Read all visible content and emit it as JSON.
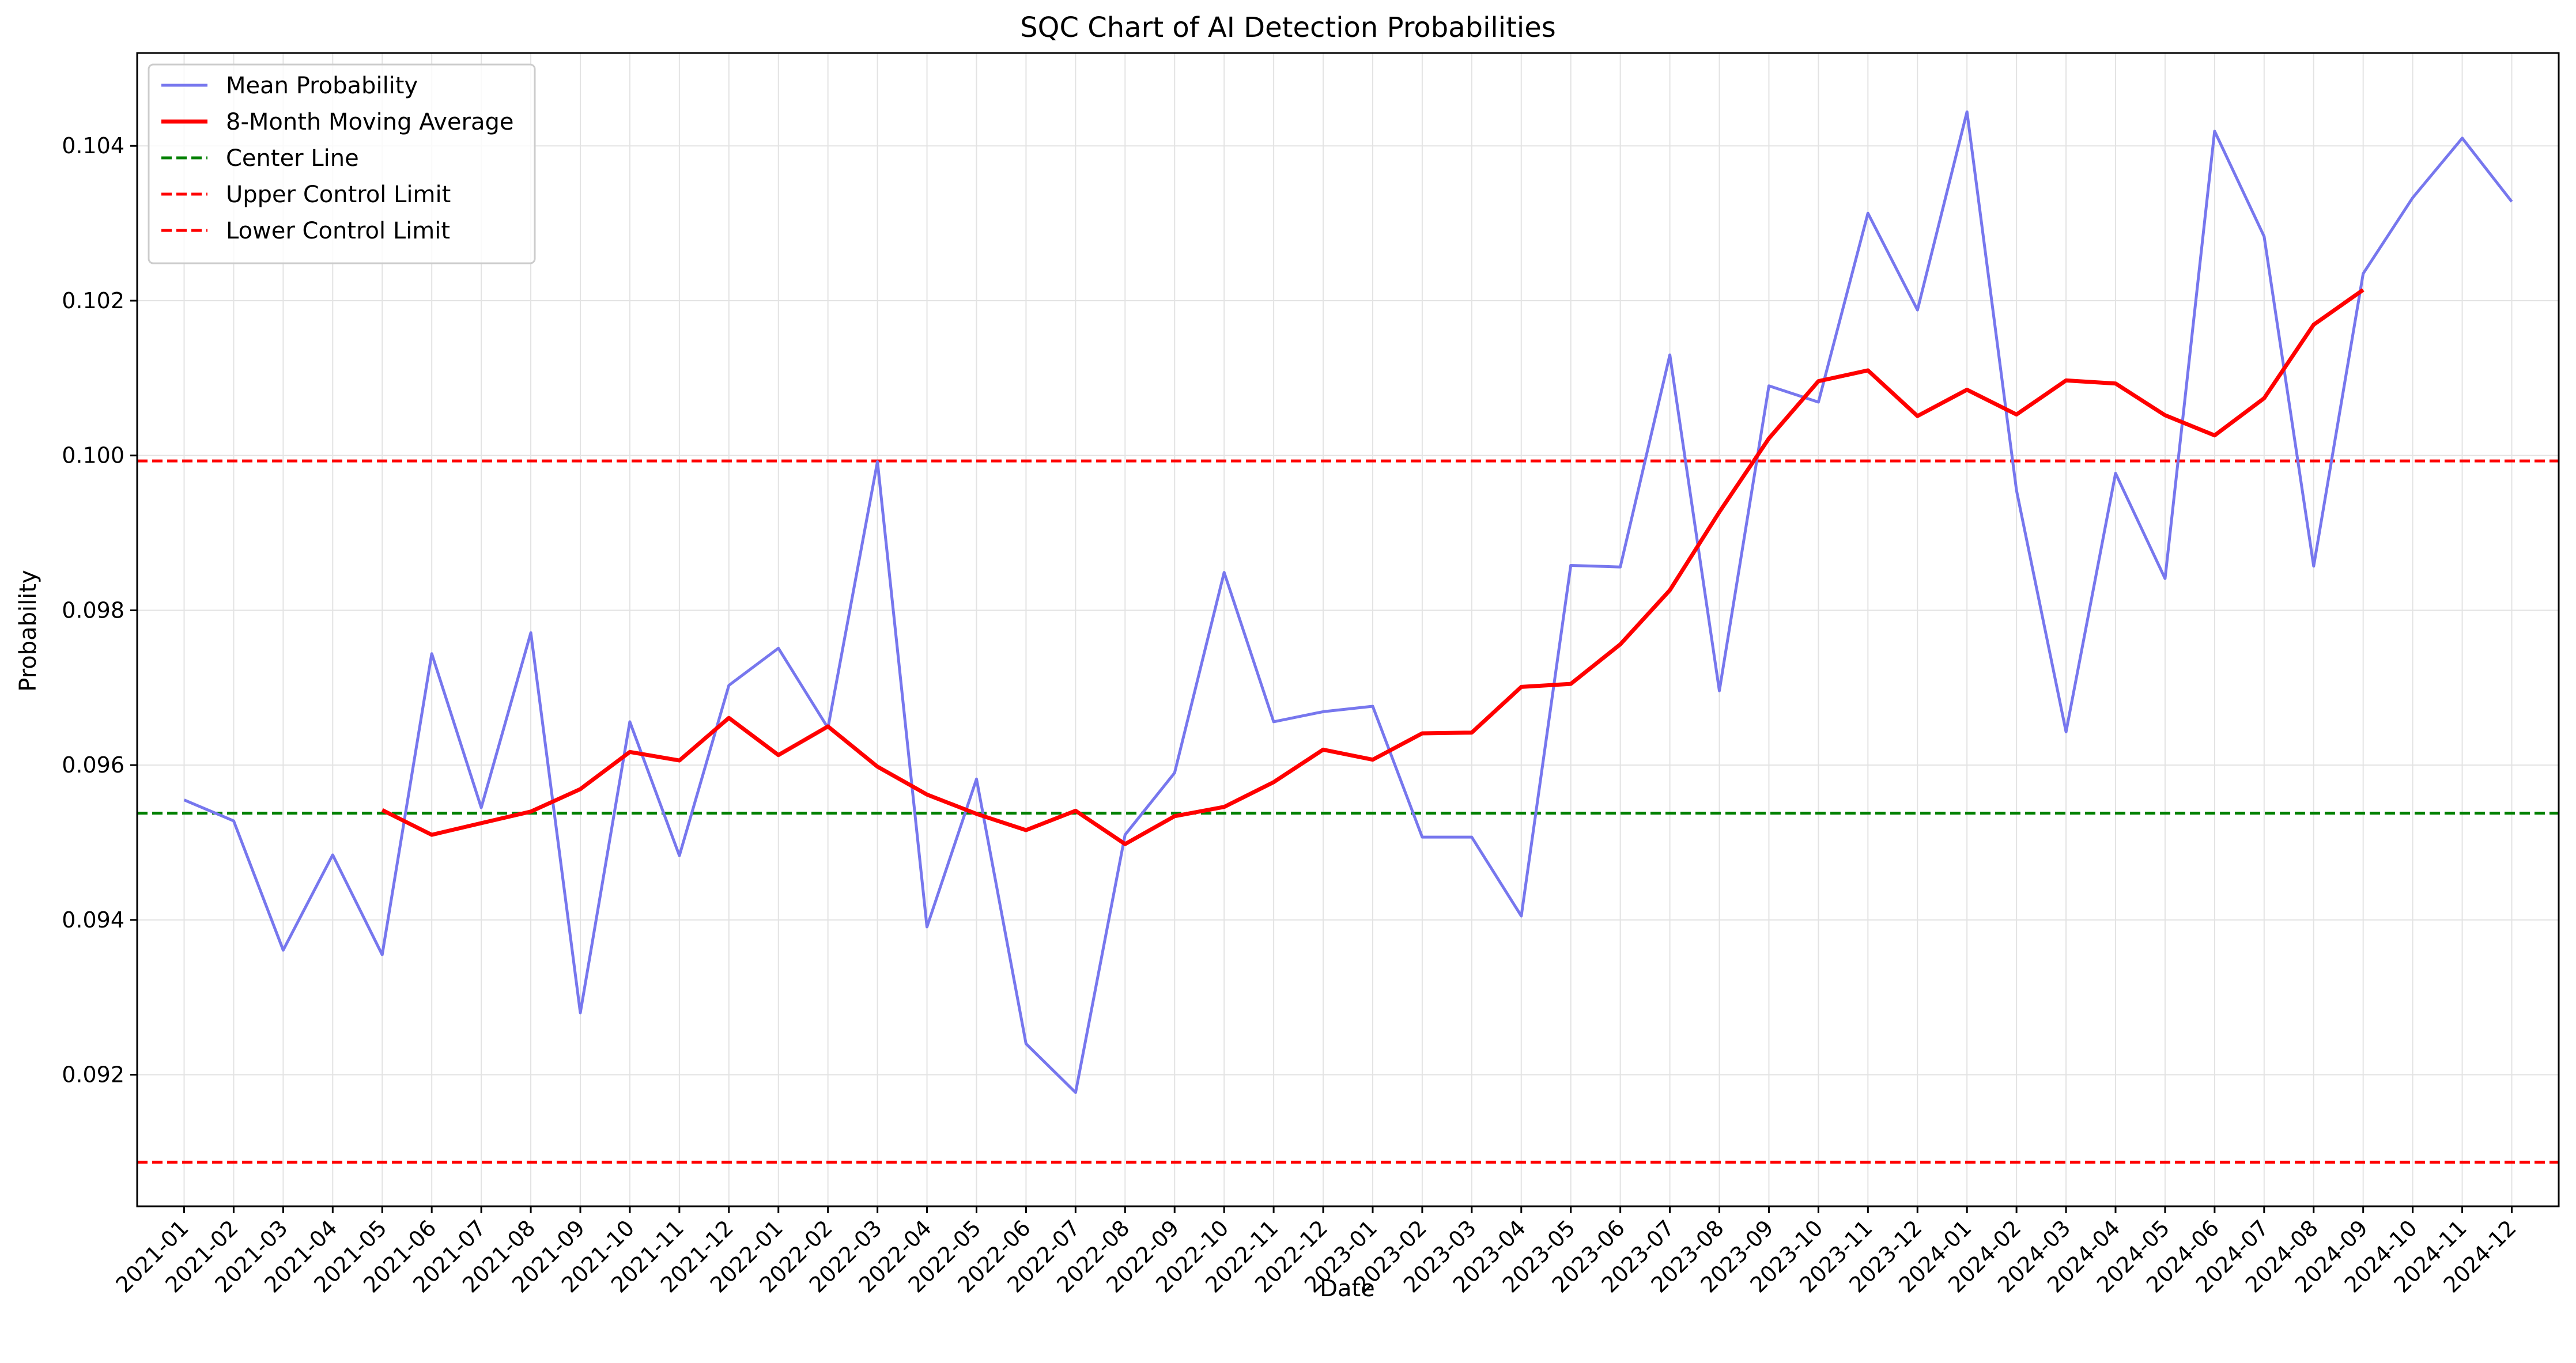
{
  "chart_data": {
    "type": "line",
    "title": "SQC Chart of AI Detection Probabilities",
    "xlabel": "Date",
    "ylabel": "Probability",
    "ylim": [
      0.0903,
      0.1052
    ],
    "y_ticks": [
      0.092,
      0.094,
      0.096,
      0.098,
      0.1,
      0.102,
      0.104
    ],
    "y_tick_labels": [
      "0.092",
      "0.094",
      "0.096",
      "0.098",
      "0.100",
      "0.102",
      "0.104"
    ],
    "grid": true,
    "legend_position": "top-left",
    "categories": [
      "2021-01",
      "2021-02",
      "2021-03",
      "2021-04",
      "2021-05",
      "2021-06",
      "2021-07",
      "2021-08",
      "2021-09",
      "2021-10",
      "2021-11",
      "2021-12",
      "2022-01",
      "2022-02",
      "2022-03",
      "2022-04",
      "2022-05",
      "2022-06",
      "2022-07",
      "2022-08",
      "2022-09",
      "2022-10",
      "2022-11",
      "2022-12",
      "2023-01",
      "2023-02",
      "2023-03",
      "2023-04",
      "2023-05",
      "2023-06",
      "2023-07",
      "2023-08",
      "2023-09",
      "2023-10",
      "2023-11",
      "2023-12",
      "2024-01",
      "2024-02",
      "2024-03",
      "2024-04",
      "2024-05",
      "2024-06",
      "2024-07",
      "2024-08",
      "2024-09",
      "2024-10",
      "2024-11",
      "2024-12"
    ],
    "series": [
      {
        "name": "Mean Probability",
        "color": "#7777ee",
        "style": "solid",
        "values": [
          0.09555,
          0.09528,
          0.09361,
          0.09484,
          0.09355,
          0.09744,
          0.09545,
          0.09771,
          0.0928,
          0.09656,
          0.09483,
          0.09703,
          0.09751,
          0.09648,
          0.09992,
          0.09391,
          0.09582,
          0.0924,
          0.09177,
          0.0951,
          0.0959,
          0.09849,
          0.09656,
          0.09669,
          0.09676,
          0.09507,
          0.09507,
          0.09405,
          0.09858,
          0.09856,
          0.1013,
          0.09696,
          0.1009,
          0.10069,
          0.10313,
          0.10188,
          0.10444,
          0.09955,
          0.09643,
          0.09977,
          0.09841,
          0.10419,
          0.10283,
          0.09857,
          0.10235,
          0.10333,
          0.1041,
          0.10328
        ]
      },
      {
        "name": "8-Month Moving Average",
        "color": "#ff0000",
        "style": "solid",
        "values": [
          null,
          null,
          null,
          null,
          0.09542,
          0.0951,
          0.09525,
          0.0954,
          0.09569,
          0.09617,
          0.09606,
          0.09661,
          0.09613,
          0.0965,
          0.09598,
          0.09562,
          0.09537,
          0.09516,
          0.09541,
          0.09498,
          0.09534,
          0.09546,
          0.09578,
          0.0962,
          0.09607,
          0.09641,
          0.09642,
          0.09701,
          0.09705,
          0.09756,
          0.09826,
          0.09927,
          0.10022,
          0.10096,
          0.1011,
          0.10051,
          0.10085,
          0.10053,
          0.10097,
          0.10093,
          0.10052,
          0.10026,
          0.10074,
          0.10169,
          0.10214,
          null,
          null,
          null
        ]
      }
    ],
    "reference_lines": [
      {
        "name": "Center Line",
        "value": 0.09538,
        "color": "#008000",
        "style": "dashed"
      },
      {
        "name": "Upper Control Limit",
        "value": 0.09993,
        "color": "#ff0000",
        "style": "dashed"
      },
      {
        "name": "Lower Control Limit",
        "value": 0.09087,
        "color": "#ff0000",
        "style": "dashed"
      }
    ],
    "legend": [
      "Mean Probability",
      "8-Month Moving Average",
      "Center Line",
      "Upper Control Limit",
      "Lower Control Limit"
    ]
  }
}
